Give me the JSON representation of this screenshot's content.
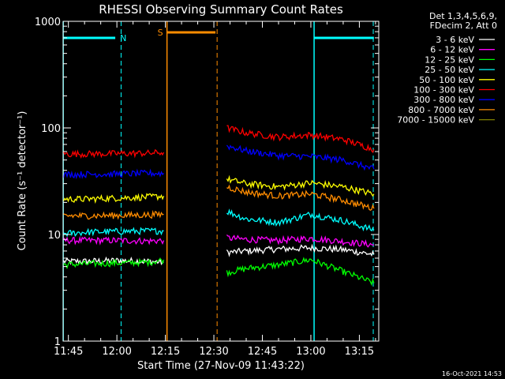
{
  "chart_data": {
    "type": "line",
    "title": "RHESSI Observing Summary Count Rates",
    "xlabel": "Start Time (27-Nov-09 11:43:22)",
    "ylabel": "Count Rate (s⁻¹ detector⁻¹)",
    "ylog": true,
    "ylim": [
      1,
      1000
    ],
    "xlim_minutes": [
      703.37,
      801.0
    ],
    "x_ticks": [
      {
        "label": "11:45",
        "minutes": 705
      },
      {
        "label": "12:00",
        "minutes": 720
      },
      {
        "label": "12:15",
        "minutes": 735
      },
      {
        "label": "12:30",
        "minutes": 750
      },
      {
        "label": "12:45",
        "minutes": 765
      },
      {
        "label": "13:00",
        "minutes": 780
      },
      {
        "label": "13:15",
        "minutes": 795
      }
    ],
    "y_ticks": [
      {
        "label": "1",
        "value": 1
      },
      {
        "label": "10",
        "value": 10
      },
      {
        "label": "100",
        "value": 100
      },
      {
        "label": "1000",
        "value": 1000
      }
    ],
    "legend_header": [
      "Det 1,3,4,5,6,9,",
      "FDecim 2, Att 0"
    ],
    "legend_placement": "outside-right",
    "timestamp": "16-Oct-2021 14:53",
    "annotations": [
      {
        "kind": "night",
        "letter": "N",
        "color": "#00ffff",
        "bar_start_min": 703.4,
        "bar_end_min": 719.5,
        "solid_line_min": 703.4,
        "dashed_line_min": 721.3
      },
      {
        "kind": "saa",
        "letter": "S",
        "color": "#ff8c00",
        "bar_start_min": 735.5,
        "bar_end_min": 750.5,
        "solid_line_min": 735.5,
        "dashed_line_min": 751.0
      },
      {
        "kind": "night",
        "letter": "",
        "color": "#00ffff",
        "bar_start_min": 781.0,
        "bar_end_min": 799.5,
        "solid_line_min": 781.0,
        "dashed_line_min": 799.3
      }
    ],
    "series": [
      {
        "name": "3 - 6 keV",
        "color": "#ffffff",
        "segments": [
          {
            "x": [
              703.5,
              710,
              720,
              730,
              734.5
            ],
            "y": [
              5.6,
              5.6,
              5.7,
              5.6,
              5.5
            ]
          },
          {
            "x": [
              754,
              760,
              770,
              780,
              790,
              799.5
            ],
            "y": [
              6.8,
              7.0,
              7.3,
              7.5,
              7.2,
              6.5
            ]
          }
        ]
      },
      {
        "name": "6 - 12 keV",
        "color": "#ff00ff",
        "segments": [
          {
            "x": [
              703.5,
              710,
              720,
              730,
              734.5
            ],
            "y": [
              8.8,
              8.8,
              8.8,
              8.7,
              8.8
            ]
          },
          {
            "x": [
              754,
              760,
              770,
              780,
              790,
              799.5
            ],
            "y": [
              9.3,
              9.0,
              8.8,
              9.2,
              8.6,
              8.0
            ]
          }
        ]
      },
      {
        "name": "12 - 25 keV",
        "color": "#00ff00",
        "segments": [
          {
            "x": [
              703.5,
              710,
              720,
              730,
              734.5
            ],
            "y": [
              5.2,
              5.3,
              5.4,
              5.5,
              5.8
            ]
          },
          {
            "x": [
              754,
              760,
              770,
              780,
              790,
              799.5
            ],
            "y": [
              4.4,
              4.8,
              5.2,
              5.8,
              4.5,
              3.5
            ]
          }
        ]
      },
      {
        "name": "25 - 50 keV",
        "color": "#00ffff",
        "segments": [
          {
            "x": [
              703.5,
              710,
              720,
              730,
              734.5
            ],
            "y": [
              10.2,
              10.5,
              10.7,
              10.8,
              10.8
            ]
          },
          {
            "x": [
              754,
              760,
              770,
              780,
              790,
              799.5
            ],
            "y": [
              16.5,
              14.0,
              13.0,
              15.5,
              13.5,
              11.0
            ]
          }
        ]
      },
      {
        "name": "50 - 100 keV",
        "color": "#ffff00",
        "segments": [
          {
            "x": [
              703.5,
              710,
              720,
              730,
              734.5
            ],
            "y": [
              21.5,
              21.5,
              22.0,
              22.5,
              23.0
            ]
          },
          {
            "x": [
              754,
              760,
              770,
              780,
              790,
              799.5
            ],
            "y": [
              33.0,
              30.0,
              28.0,
              30.5,
              28.0,
              24.0
            ]
          }
        ]
      },
      {
        "name": "100 - 300 keV",
        "color": "#ff0000",
        "segments": [
          {
            "x": [
              703.5,
              710,
              720,
              730,
              734.5
            ],
            "y": [
              57.0,
              57.0,
              57.5,
              58.0,
              59.0
            ]
          },
          {
            "x": [
              754,
              760,
              770,
              780,
              790,
              799.5
            ],
            "y": [
              100.0,
              90.0,
              82.0,
              86.0,
              78.0,
              63.0
            ]
          }
        ]
      },
      {
        "name": "300 - 800 keV",
        "color": "#0000ff",
        "segments": [
          {
            "x": [
              703.5,
              710,
              720,
              730,
              734.5
            ],
            "y": [
              36.5,
              36.8,
              37.0,
              37.5,
              37.5
            ]
          },
          {
            "x": [
              754,
              760,
              770,
              780,
              790,
              799.5
            ],
            "y": [
              68.0,
              61.0,
              55.0,
              54.0,
              50.0,
              41.0
            ]
          }
        ]
      },
      {
        "name": "800 - 7000 keV",
        "color": "#ff8c00",
        "segments": [
          {
            "x": [
              703.5,
              710,
              720,
              730,
              734.5
            ],
            "y": [
              15.0,
              15.0,
              15.1,
              15.3,
              15.5
            ]
          },
          {
            "x": [
              754,
              760,
              770,
              780,
              790,
              799.5
            ],
            "y": [
              28.0,
              25.0,
              23.0,
              24.0,
              21.0,
              17.5
            ]
          }
        ]
      },
      {
        "name": "7000 - 15000 keV",
        "color": "#808000",
        "segments": []
      }
    ]
  }
}
